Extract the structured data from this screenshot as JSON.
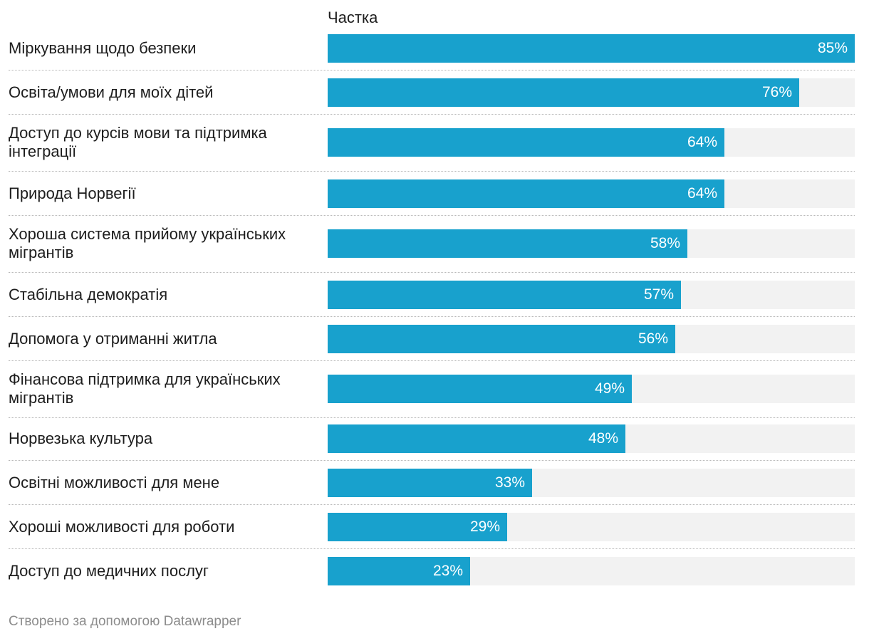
{
  "chart_data": {
    "type": "bar",
    "orientation": "horizontal",
    "column_header": "Частка",
    "categories": [
      "Міркування щодо безпеки",
      "Освіта/умови для моїх дітей",
      "Доступ до курсів мови та підтримка інтеграції",
      "Природа Норвегії",
      "Хороша система прийому українських мігрантів",
      "Стабільна демократія",
      "Допомога у отриманні житла",
      "Фінансова підтримка для українських мігрантів",
      "Норвезька культура",
      "Освітні можливості для мене",
      "Хороші можливості для роботи",
      "Доступ до медичних послуг"
    ],
    "values": [
      85,
      76,
      64,
      64,
      58,
      57,
      56,
      49,
      48,
      33,
      29,
      23
    ],
    "value_labels": [
      "85%",
      "76%",
      "64%",
      "64%",
      "58%",
      "57%",
      "56%",
      "49%",
      "48%",
      "33%",
      "29%",
      "23%"
    ],
    "unit": "%",
    "xlim": [
      0,
      85
    ],
    "grid": false,
    "legend": "none",
    "colors": {
      "bar": "#18a1cd",
      "track": "#f2f2f2",
      "value_text": "#ffffff",
      "label_text": "#1d1d1d",
      "divider": "#b8b8b8"
    }
  },
  "footer": {
    "credit": "Створено за допомогою Datawrapper"
  }
}
